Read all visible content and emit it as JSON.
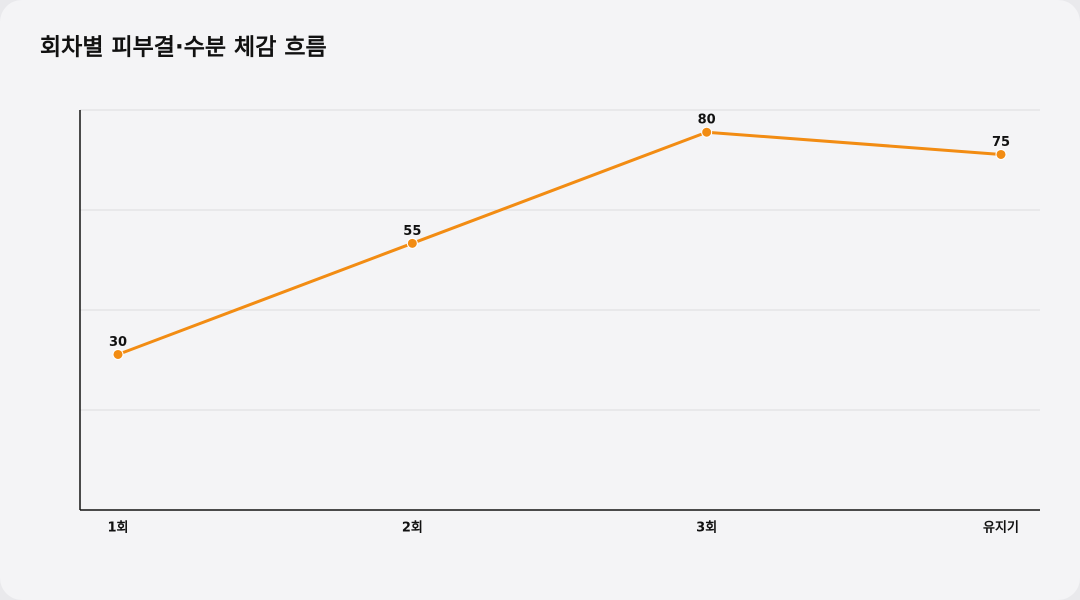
{
  "chart_data": {
    "type": "line",
    "title": "회차별 피부결·수분 체감 흐름",
    "categories": [
      "1회",
      "2회",
      "3회",
      "유지기"
    ],
    "series": [
      {
        "color": "#f28c13",
        "values": [
          30,
          55,
          80,
          75
        ]
      }
    ],
    "ylim": [
      -5,
      85
    ],
    "yticks": [
      17.5,
      40,
      62.5,
      85
    ],
    "ytick_labels": false,
    "grid": true
  }
}
